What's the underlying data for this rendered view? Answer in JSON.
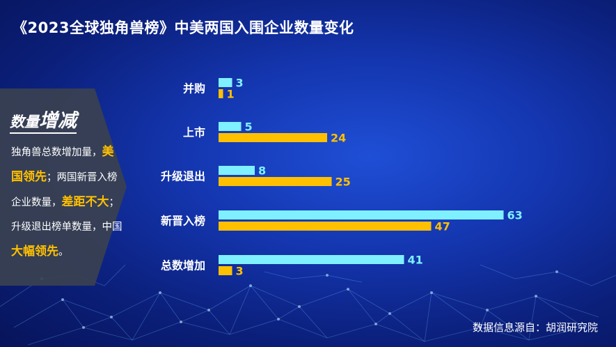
{
  "title": "《2023全球独角兽榜》中美两国入围企业数量变化",
  "panel": {
    "heading_part1": "数量",
    "heading_part2": "增减",
    "segments": [
      {
        "text": "独角兽总数增加量，",
        "highlight": false
      },
      {
        "text": "美国领先",
        "highlight": true
      },
      {
        "text": "；两国新晋入榜企业数量，",
        "highlight": false
      },
      {
        "text": "差距不大",
        "highlight": true
      },
      {
        "text": "；升级退出榜单数量，中国",
        "highlight": false
      },
      {
        "text": "大幅领先",
        "highlight": true
      },
      {
        "text": "。",
        "highlight": false
      }
    ]
  },
  "source": "数据信息源自：胡润研究院",
  "colors": {
    "series_cyan": "#7ff0ff",
    "series_gold": "#ffc000",
    "label_cyan": "#7ff0ff",
    "label_gold": "#ffc000",
    "panel_bg": "#3a4150"
  },
  "chart_data": {
    "type": "bar",
    "orientation": "horizontal",
    "categories": [
      "并购",
      "上市",
      "升级退出",
      "新晋入榜",
      "总数增加"
    ],
    "series": [
      {
        "values": [
          3,
          5,
          8,
          63,
          41
        ]
      },
      {
        "values": [
          1,
          24,
          25,
          47,
          3
        ]
      }
    ],
    "grid": false,
    "legend": "none"
  }
}
